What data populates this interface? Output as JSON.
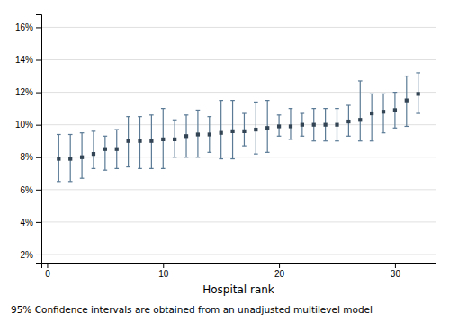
{
  "chart_data": {
    "type": "scatter",
    "x_label": "Hospital rank",
    "caption": "95% Confidence intervals are obtained from an unadjusted multilevel model",
    "x": [
      1,
      2,
      3,
      4,
      5,
      6,
      7,
      8,
      9,
      10,
      11,
      12,
      13,
      14,
      15,
      16,
      17,
      18,
      19,
      20,
      21,
      22,
      23,
      24,
      25,
      26,
      27,
      28,
      29,
      30,
      31,
      32
    ],
    "values": [
      0.079,
      0.079,
      0.08,
      0.082,
      0.085,
      0.085,
      0.09,
      0.09,
      0.09,
      0.091,
      0.091,
      0.093,
      0.094,
      0.094,
      0.095,
      0.096,
      0.096,
      0.097,
      0.098,
      0.099,
      0.099,
      0.1,
      0.1,
      0.1,
      0.1,
      0.102,
      0.103,
      0.107,
      0.108,
      0.109,
      0.115,
      0.119
    ],
    "lower": [
      0.065,
      0.065,
      0.067,
      0.073,
      0.072,
      0.073,
      0.074,
      0.073,
      0.073,
      0.073,
      0.08,
      0.08,
      0.08,
      0.083,
      0.079,
      0.079,
      0.087,
      0.082,
      0.083,
      0.093,
      0.091,
      0.093,
      0.09,
      0.09,
      0.09,
      0.093,
      0.09,
      0.09,
      0.095,
      0.098,
      0.099,
      0.107
    ],
    "upper": [
      0.094,
      0.094,
      0.095,
      0.096,
      0.093,
      0.097,
      0.105,
      0.105,
      0.106,
      0.11,
      0.103,
      0.106,
      0.109,
      0.105,
      0.115,
      0.115,
      0.107,
      0.114,
      0.115,
      0.106,
      0.11,
      0.107,
      0.11,
      0.11,
      0.11,
      0.112,
      0.127,
      0.119,
      0.119,
      0.12,
      0.13,
      0.132
    ],
    "color": "#5a7a95",
    "marker": "square",
    "xlim": [
      -0.5,
      33.5
    ],
    "ylim": [
      0.015,
      0.168
    ],
    "xticks": [
      0,
      10,
      20,
      30
    ],
    "yticks": [
      {
        "value": 0.02,
        "label": "2%"
      },
      {
        "value": 0.04,
        "label": "4%"
      },
      {
        "value": 0.06,
        "label": "6%"
      },
      {
        "value": 0.08,
        "label": "8%"
      },
      {
        "value": 0.1,
        "label": "10%"
      },
      {
        "value": 0.12,
        "label": "12%"
      },
      {
        "value": 0.14,
        "label": "14%"
      },
      {
        "value": 0.16,
        "label": "16%"
      }
    ],
    "grid": true
  }
}
